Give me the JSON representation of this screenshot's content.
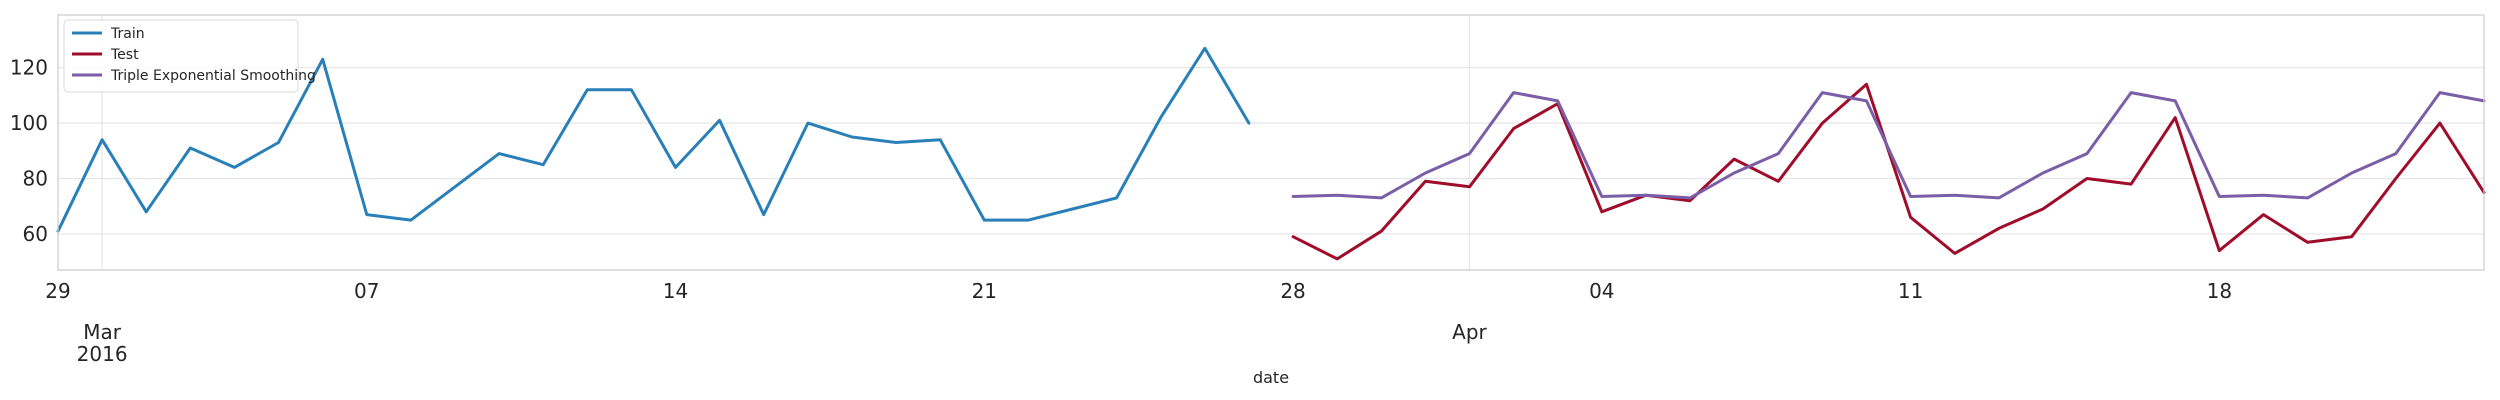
{
  "chart_data": {
    "type": "line",
    "title": "",
    "xlabel": "date",
    "ylabel": "",
    "x_range": [
      "2016-02-29",
      "2016-04-24"
    ],
    "ylim": [
      47,
      139
    ],
    "grid": true,
    "legend_position": "top-left",
    "y_ticks": [
      60,
      80,
      100,
      120
    ],
    "x_ticks": [
      {
        "date": "2016-02-29",
        "label": "29"
      },
      {
        "date": "2016-03-07",
        "label": "07"
      },
      {
        "date": "2016-03-14",
        "label": "14"
      },
      {
        "date": "2016-03-21",
        "label": "21"
      },
      {
        "date": "2016-03-28",
        "label": "28"
      },
      {
        "date": "2016-04-04",
        "label": "04"
      },
      {
        "date": "2016-04-11",
        "label": "11"
      },
      {
        "date": "2016-04-18",
        "label": "18"
      }
    ],
    "x_major_ticks": [
      {
        "date": "2016-03-01",
        "label": "Mar",
        "sublabel": "2016"
      },
      {
        "date": "2016-04-01",
        "label": "Apr",
        "sublabel": ""
      }
    ],
    "series": [
      {
        "name": "Train",
        "color": "#2980b9",
        "x": [
          "2016-02-29",
          "2016-03-01",
          "2016-03-02",
          "2016-03-03",
          "2016-03-04",
          "2016-03-05",
          "2016-03-06",
          "2016-03-07",
          "2016-03-08",
          "2016-03-09",
          "2016-03-10",
          "2016-03-11",
          "2016-03-12",
          "2016-03-13",
          "2016-03-14",
          "2016-03-15",
          "2016-03-16",
          "2016-03-17",
          "2016-03-18",
          "2016-03-19",
          "2016-03-20",
          "2016-03-21",
          "2016-03-22",
          "2016-03-23",
          "2016-03-24",
          "2016-03-25",
          "2016-03-26",
          "2016-03-27"
        ],
        "y": [
          61,
          94,
          68,
          91,
          84,
          93,
          123,
          67,
          65,
          77,
          89,
          85,
          112,
          112,
          84,
          101,
          67,
          100,
          95,
          93,
          94,
          65,
          65,
          69,
          73,
          102,
          127,
          100
        ]
      },
      {
        "name": "Test",
        "color": "#a00d2b",
        "x": [
          "2016-03-28",
          "2016-03-29",
          "2016-03-30",
          "2016-03-31",
          "2016-04-01",
          "2016-04-02",
          "2016-04-03",
          "2016-04-04",
          "2016-04-05",
          "2016-04-06",
          "2016-04-07",
          "2016-04-08",
          "2016-04-09",
          "2016-04-10",
          "2016-04-11",
          "2016-04-12",
          "2016-04-13",
          "2016-04-14",
          "2016-04-15",
          "2016-04-16",
          "2016-04-17",
          "2016-04-18",
          "2016-04-19",
          "2016-04-20",
          "2016-04-21",
          "2016-04-22",
          "2016-04-23",
          "2016-04-24"
        ],
        "y": [
          59,
          51,
          61,
          79,
          77,
          98,
          107,
          68,
          74,
          72,
          87,
          79,
          100,
          114,
          66,
          53,
          62,
          69,
          80,
          78,
          102,
          54,
          67,
          57,
          59,
          80,
          100,
          75
        ]
      },
      {
        "name": "Triple Exponential Smoothing",
        "color": "#7a5ea8",
        "x": [
          "2016-03-28",
          "2016-03-29",
          "2016-03-30",
          "2016-03-31",
          "2016-04-01",
          "2016-04-02",
          "2016-04-03",
          "2016-04-04",
          "2016-04-05",
          "2016-04-06",
          "2016-04-07",
          "2016-04-08",
          "2016-04-09",
          "2016-04-10",
          "2016-04-11",
          "2016-04-12",
          "2016-04-13",
          "2016-04-14",
          "2016-04-15",
          "2016-04-16",
          "2016-04-17",
          "2016-04-18",
          "2016-04-19",
          "2016-04-20",
          "2016-04-21",
          "2016-04-22",
          "2016-04-23",
          "2016-04-24"
        ],
        "y": [
          73.5,
          74,
          73,
          82,
          89,
          111,
          108,
          73.5,
          74,
          73,
          82,
          89,
          111,
          108,
          73.5,
          74,
          73,
          82,
          89,
          111,
          108,
          73.5,
          74,
          73,
          82,
          89,
          111,
          108
        ]
      }
    ]
  }
}
